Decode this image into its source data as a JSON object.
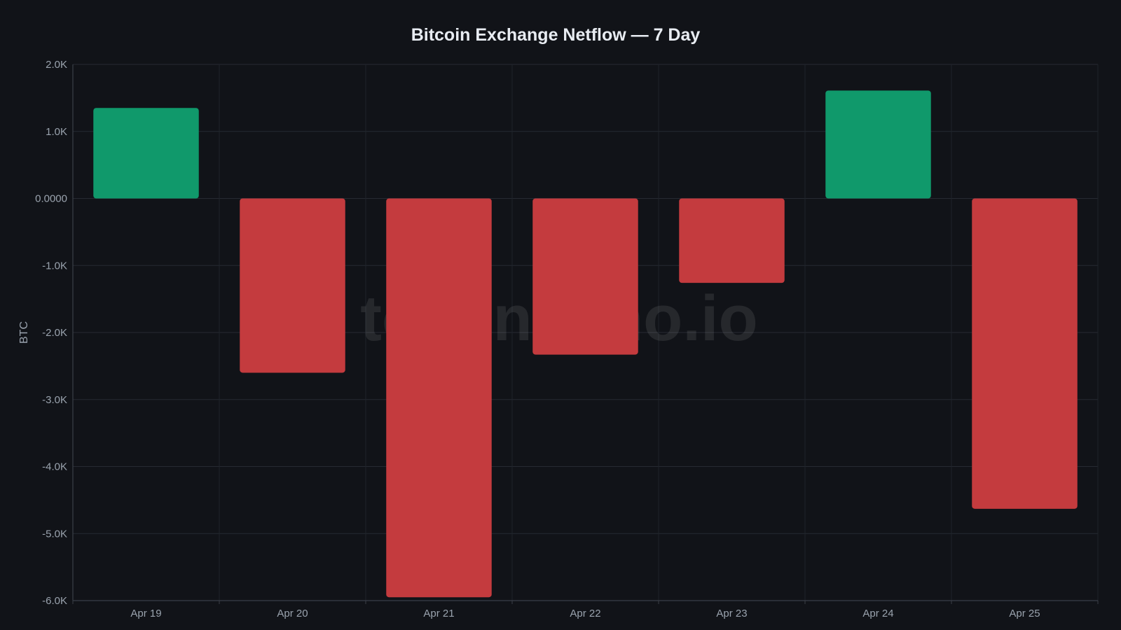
{
  "chart_data": {
    "type": "bar",
    "title": "Bitcoin Exchange Netflow — 7 Day",
    "xlabel": "",
    "ylabel": "BTC",
    "categories": [
      "Apr 19",
      "Apr 20",
      "Apr 21",
      "Apr 22",
      "Apr 23",
      "Apr 24",
      "Apr 25"
    ],
    "values": [
      1350,
      -2600,
      -5950,
      -2330,
      -1260,
      1610,
      -4630
    ],
    "ylim": [
      -6000,
      2000
    ],
    "yticks": [
      2000,
      1000,
      0,
      -1000,
      -2000,
      -3000,
      -4000,
      -5000,
      -6000
    ],
    "ytick_labels": [
      "2.0K",
      "1.0K",
      "0.0000",
      "-1.0K",
      "-2.0K",
      "-3.0K",
      "-4.0K",
      "-5.0K",
      "-6.0K"
    ],
    "grid": true,
    "legend": "none",
    "positive_color": "#10996b",
    "negative_color": "#c43b3e",
    "background_color": "#111318"
  },
  "watermark": "tokenecho.io"
}
